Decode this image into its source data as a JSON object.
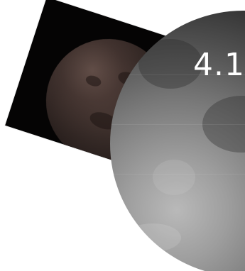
{
  "moon": {
    "label": "4.1"
  },
  "colors": {
    "background": "#ffffff",
    "mars_card": "#050404",
    "moon_highlight": "#b9b9b9",
    "moon_shadow": "#1b1b1b"
  }
}
